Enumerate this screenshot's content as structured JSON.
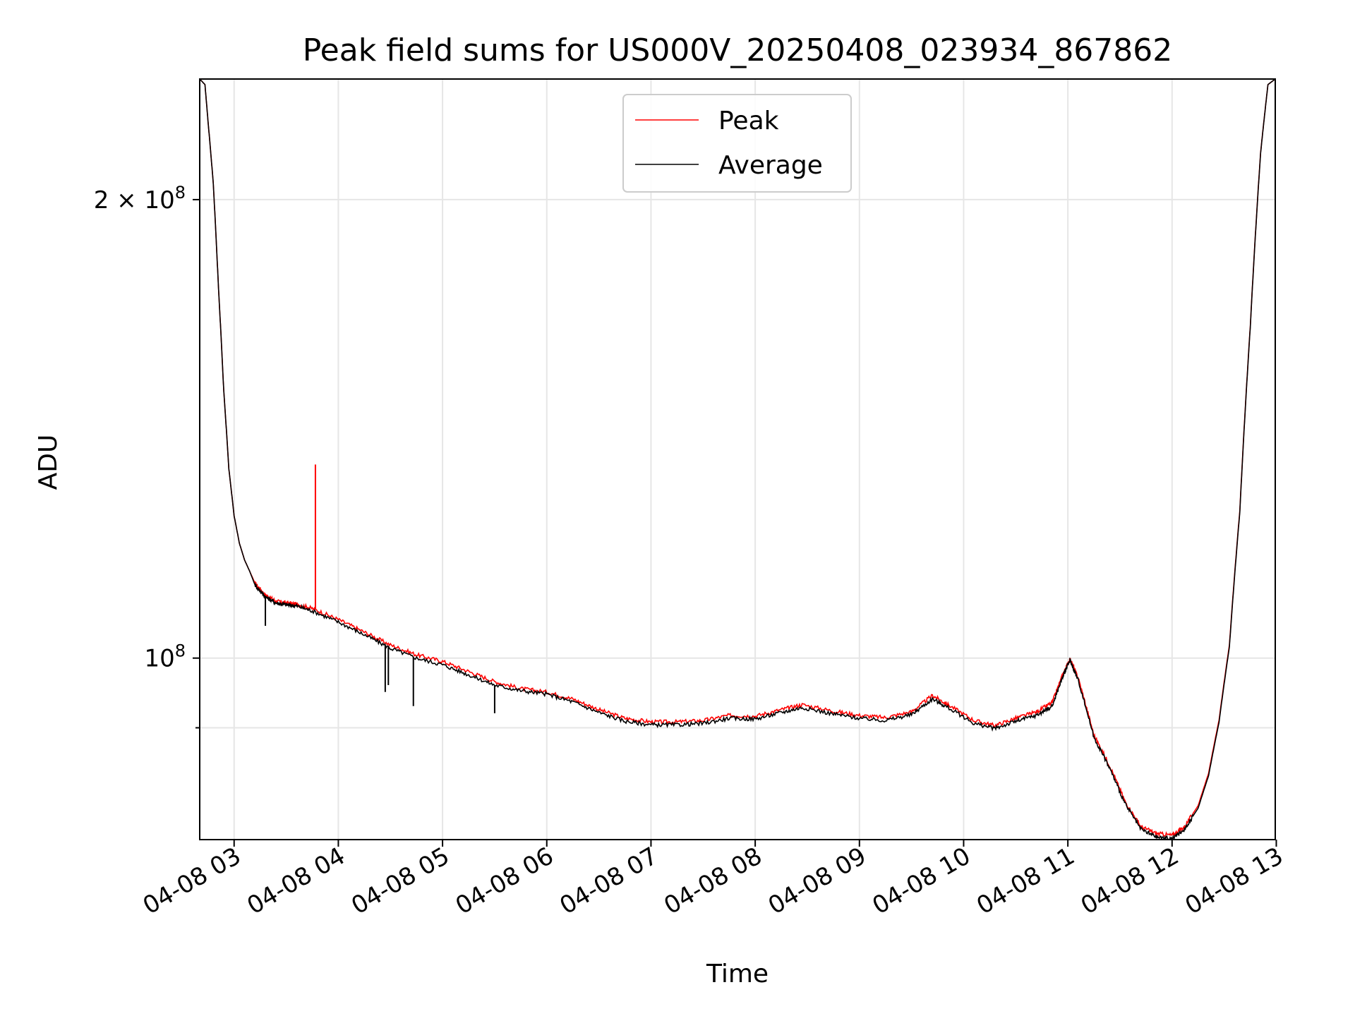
{
  "chart_data": {
    "type": "line",
    "title": "Peak field sums for US000V_20250408_023934_867862",
    "xlabel": "Time",
    "ylabel": "ADU",
    "yscale": "log",
    "xlim": [
      2.67,
      12.99
    ],
    "ylim": [
      76000000,
      240000000
    ],
    "grid": true,
    "legend_position": "upper center",
    "x_ticks": [
      3,
      4,
      5,
      6,
      7,
      8,
      9,
      10,
      11,
      12,
      13
    ],
    "x_tick_labels": [
      "04-08 03",
      "04-08 04",
      "04-08 05",
      "04-08 06",
      "04-08 07",
      "04-08 08",
      "04-08 09",
      "04-08 10",
      "04-08 11",
      "04-08 12",
      "04-08 13"
    ],
    "y_ticks": [
      200000000,
      100000000
    ],
    "y_tick_labels": [
      {
        "mantissa": "2",
        "times": "×",
        "base": "10",
        "exp": "8"
      },
      {
        "mantissa": "",
        "times": "",
        "base": "10",
        "exp": "8"
      }
    ],
    "x_unit": "hours of 2025-04-08",
    "x": [
      2.67,
      2.72,
      2.75,
      2.8,
      2.85,
      2.9,
      2.95,
      3.0,
      3.05,
      3.1,
      3.15,
      3.2,
      3.3,
      3.4,
      3.5,
      3.6,
      3.75,
      4.0,
      4.25,
      4.5,
      4.75,
      5.0,
      5.25,
      5.5,
      5.75,
      6.0,
      6.25,
      6.5,
      6.75,
      7.0,
      7.25,
      7.5,
      7.75,
      8.0,
      8.25,
      8.45,
      8.75,
      9.0,
      9.25,
      9.5,
      9.7,
      9.85,
      10.1,
      10.3,
      10.5,
      10.7,
      10.85,
      10.95,
      11.02,
      11.1,
      11.25,
      11.4,
      11.55,
      11.7,
      11.85,
      12.0,
      12.12,
      12.25,
      12.35,
      12.45,
      12.55,
      12.65,
      12.75,
      12.85,
      12.92,
      12.99
    ],
    "series": [
      {
        "name": "Peak",
        "color": "#ff0000",
        "values": [
          240000000,
          238000000,
          225000000,
          205000000,
          175000000,
          150000000,
          133000000,
          124000000,
          119000000,
          116000000,
          114000000,
          112000000,
          110000000,
          109000000,
          108700000,
          108500000,
          107800000,
          106000000,
          104000000,
          102000000,
          100500000,
          99500000,
          98000000,
          96500000,
          95500000,
          95000000,
          94000000,
          92500000,
          91300000,
          90800000,
          90800000,
          91000000,
          91700000,
          91600000,
          92500000,
          93200000,
          92300000,
          91700000,
          91400000,
          92200000,
          94500000,
          93200000,
          91000000,
          90300000,
          91300000,
          92200000,
          93500000,
          97500000,
          99900000,
          97000000,
          89000000,
          85000000,
          80500000,
          77500000,
          76700000,
          76500000,
          77500000,
          80000000,
          84000000,
          91000000,
          102000000,
          125000000,
          165000000,
          215000000,
          238000000,
          240000000
        ]
      },
      {
        "name": "Average",
        "color": "#000000",
        "values": [
          240000000,
          238000000,
          225000000,
          205000000,
          175000000,
          150000000,
          133000000,
          124000000,
          119000000,
          116000000,
          114000000,
          111700000,
          109700000,
          108700000,
          108400000,
          108200000,
          107400000,
          105600000,
          103600000,
          101500000,
          100000000,
          99000000,
          97500000,
          96000000,
          95200000,
          94700000,
          93600000,
          92100000,
          90900000,
          90400000,
          90400000,
          90600000,
          91300000,
          91200000,
          92100000,
          92800000,
          91900000,
          91300000,
          91000000,
          91800000,
          94000000,
          92800000,
          90600000,
          89900000,
          90900000,
          91700000,
          93000000,
          97200000,
          99700000,
          96700000,
          88700000,
          84700000,
          80200000,
          77200000,
          76300000,
          76100000,
          77200000,
          79700000,
          83700000,
          90700000,
          101700000,
          124700000,
          164700000,
          214700000,
          238000000,
          240000000
        ]
      }
    ],
    "spikes": [
      {
        "series": "Peak",
        "x": 3.78,
        "value": 134000000
      },
      {
        "series": "Average",
        "x": 3.3,
        "value": 105000000
      },
      {
        "series": "Average",
        "x": 4.45,
        "value": 95000000
      },
      {
        "series": "Average",
        "x": 4.48,
        "value": 96000000
      },
      {
        "series": "Average",
        "x": 4.72,
        "value": 93000000
      },
      {
        "series": "Average",
        "x": 5.5,
        "value": 92000000
      }
    ]
  }
}
